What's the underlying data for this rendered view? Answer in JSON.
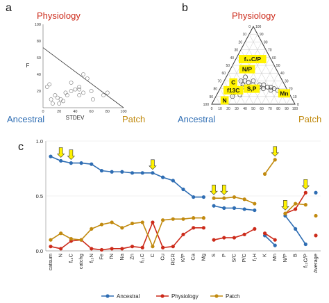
{
  "panel_a": {
    "letter": "a",
    "top_label": "Physiology",
    "left_label": "Ancestral",
    "right_label": "Patch",
    "colors": {
      "physiology": "#cc2a1a",
      "ancestral": "#2e6db3",
      "patch": "#c18a0f"
    }
  },
  "panel_b": {
    "letter": "b",
    "top_label": "Physiology",
    "left_label": "Ancestral",
    "right_label": "Patch",
    "highlight_color": "#fff200"
  },
  "panel_c": {
    "letter": "c"
  },
  "chart_data": [
    {
      "id": "a",
      "type": "scatter",
      "xlabel": "STDEV",
      "ylabel": "F",
      "xlim": [
        0,
        100
      ],
      "ylim": [
        0,
        100
      ],
      "x_ticks": [
        0,
        20,
        40,
        60,
        80,
        100
      ],
      "y_ticks": [
        0,
        20,
        40,
        60,
        80,
        100
      ],
      "grid": false,
      "reference_line": {
        "from": [
          0,
          72
        ],
        "to": [
          100,
          0
        ]
      },
      "points": [
        [
          5,
          25
        ],
        [
          8,
          28
        ],
        [
          10,
          10
        ],
        [
          12,
          5
        ],
        [
          15,
          15
        ],
        [
          18,
          12
        ],
        [
          20,
          5
        ],
        [
          22,
          10
        ],
        [
          25,
          8
        ],
        [
          28,
          18
        ],
        [
          30,
          15
        ],
        [
          35,
          20
        ],
        [
          35,
          30
        ],
        [
          40,
          22
        ],
        [
          45,
          15
        ],
        [
          45,
          25
        ],
        [
          50,
          40
        ],
        [
          50,
          18
        ],
        [
          55,
          35
        ],
        [
          60,
          20
        ],
        [
          62,
          10
        ],
        [
          75,
          15
        ],
        [
          80,
          18
        ],
        [
          45,
          22
        ]
      ]
    },
    {
      "id": "b",
      "type": "ternary",
      "axes": [
        "Ancestral",
        "Physiology",
        "Patch"
      ],
      "ticks": [
        0,
        10,
        20,
        30,
        40,
        50,
        60,
        70,
        80,
        90,
        100
      ],
      "points": [
        [
          70,
          10,
          20
        ],
        [
          65,
          15,
          20
        ],
        [
          60,
          12,
          28
        ],
        [
          58,
          18,
          24
        ],
        [
          55,
          20,
          25
        ],
        [
          52,
          22,
          26
        ],
        [
          50,
          25,
          25
        ],
        [
          48,
          20,
          32
        ],
        [
          45,
          22,
          33
        ],
        [
          45,
          30,
          25
        ],
        [
          42,
          28,
          30
        ],
        [
          40,
          20,
          40
        ],
        [
          38,
          25,
          37
        ],
        [
          35,
          30,
          35
        ],
        [
          35,
          20,
          45
        ],
        [
          32,
          22,
          46
        ],
        [
          30,
          25,
          45
        ],
        [
          28,
          20,
          52
        ],
        [
          25,
          25,
          50
        ],
        [
          22,
          22,
          56
        ],
        [
          20,
          18,
          62
        ],
        [
          18,
          22,
          60
        ],
        [
          15,
          20,
          65
        ],
        [
          12,
          18,
          70
        ],
        [
          10,
          15,
          75
        ],
        [
          60,
          25,
          15
        ],
        [
          50,
          30,
          20
        ],
        [
          42,
          35,
          23
        ]
      ],
      "highlighted_labels": [
        {
          "label": "f₁₃C/P",
          "a": 22,
          "p": 58,
          "t": 20
        },
        {
          "label": "N/P",
          "a": 35,
          "p": 45,
          "t": 20
        },
        {
          "label": "C",
          "a": 60,
          "p": 28,
          "t": 12
        },
        {
          "label": "f13C",
          "a": 65,
          "p": 18,
          "t": 17
        },
        {
          "label": "N",
          "a": 82,
          "p": 5,
          "t": 13
        },
        {
          "label": "S,P",
          "a": 42,
          "p": 20,
          "t": 38
        },
        {
          "label": "Mn",
          "a": 6,
          "p": 14,
          "t": 80
        }
      ]
    },
    {
      "id": "c",
      "type": "line",
      "ylim": [
        0,
        1
      ],
      "y_ticks": [
        "0.0",
        "0.5",
        "1.0"
      ],
      "x_labels": [
        "catsum",
        "N",
        "f₁₃C",
        "catchg",
        "f₁₅N",
        "Fe",
        "fN",
        "Na",
        "Zn",
        "f₁₃C",
        "C",
        "Cu",
        "RGR",
        "K/P",
        "Ca",
        "Mg",
        "S",
        "P",
        "S/C",
        "P/C",
        "f₂H",
        "K",
        "Mn",
        "N/P",
        "B",
        "f₁₃C/P",
        "Average"
      ],
      "groups": [
        [
          0,
          15
        ],
        [
          16,
          20
        ],
        [
          21,
          22
        ],
        [
          23,
          25
        ],
        [
          26,
          26
        ]
      ],
      "series": [
        {
          "name": "Ancestral",
          "color": "#2e6db3",
          "values": [
            0.86,
            0.82,
            0.8,
            0.8,
            0.79,
            0.73,
            0.72,
            0.72,
            0.71,
            0.71,
            0.71,
            0.67,
            0.64,
            0.56,
            0.49,
            0.49,
            0.41,
            0.39,
            0.39,
            0.38,
            0.37,
            0.14,
            0.05,
            0.32,
            0.2,
            0.06,
            0.53
          ]
        },
        {
          "name": "Physiology",
          "color": "#cc2a1a",
          "values": [
            0.04,
            0.02,
            0.09,
            0.1,
            0.02,
            0.01,
            0.02,
            0.02,
            0.04,
            0.03,
            0.26,
            0.03,
            0.04,
            0.15,
            0.21,
            0.21,
            0.1,
            0.12,
            0.12,
            0.15,
            0.2,
            0.16,
            0.1,
            0.34,
            0.38,
            0.53,
            0.14
          ]
        },
        {
          "name": "Patch",
          "color": "#c18a0f",
          "values": [
            0.1,
            0.16,
            0.11,
            0.1,
            0.2,
            0.24,
            0.26,
            0.21,
            0.25,
            0.26,
            0.04,
            0.28,
            0.29,
            0.29,
            0.3,
            0.3,
            0.48,
            0.48,
            0.49,
            0.47,
            0.43,
            0.7,
            0.83,
            0.34,
            0.43,
            0.42,
            0.32
          ]
        }
      ],
      "arrows_at": [
        1,
        2,
        10,
        16,
        17,
        22,
        23,
        25
      ],
      "legend_position": "bottom"
    }
  ]
}
